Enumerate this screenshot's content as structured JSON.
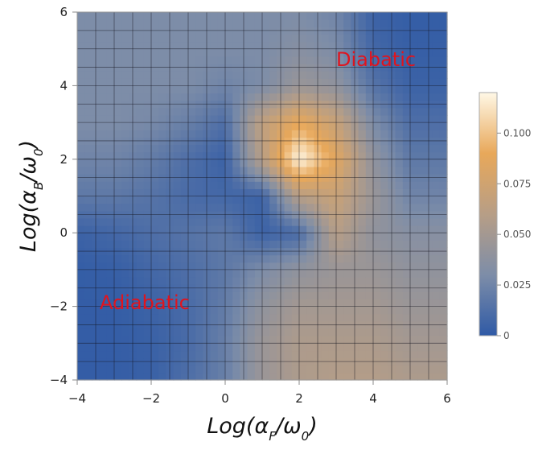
{
  "chart_data": {
    "type": "heatmap",
    "xlabel": "Log(αF/ω0)",
    "ylabel": "Log(αB/ω0)",
    "xlim": [
      -4,
      6
    ],
    "ylim": [
      -4,
      6
    ],
    "x_ticks": [
      "−4",
      "−2",
      "0",
      "2",
      "4",
      "6"
    ],
    "y_ticks": [
      "−4",
      "−2",
      "0",
      "2",
      "4",
      "6"
    ],
    "colorbar": {
      "range": [
        0,
        0.12
      ],
      "ticks": [
        "0",
        "0.025",
        "0.050",
        "0.075",
        "0.100"
      ],
      "colors": [
        "#2f5aa6",
        "#7d8da8",
        "#b79e86",
        "#e8a85a",
        "#fff8e6"
      ]
    },
    "grid": true,
    "annotations": [
      "Diabatic",
      "Adiabatic"
    ],
    "x": [
      -4,
      -3,
      -2,
      -1,
      0,
      1,
      2,
      3,
      4,
      5,
      6
    ],
    "y": [
      6,
      5,
      4,
      3,
      2,
      1,
      0,
      -1,
      -2,
      -3,
      -4
    ],
    "z": [
      [
        0.03,
        0.03,
        0.03,
        0.03,
        0.03,
        0.03,
        0.03,
        0.025,
        0.005,
        0.002,
        0.002
      ],
      [
        0.03,
        0.03,
        0.03,
        0.03,
        0.03,
        0.03,
        0.035,
        0.03,
        0.008,
        0.003,
        0.003
      ],
      [
        0.03,
        0.03,
        0.03,
        0.03,
        0.025,
        0.03,
        0.045,
        0.04,
        0.015,
        0.005,
        0.005
      ],
      [
        0.03,
        0.03,
        0.028,
        0.022,
        0.012,
        0.065,
        0.09,
        0.07,
        0.03,
        0.012,
        0.012
      ],
      [
        0.025,
        0.025,
        0.02,
        0.012,
        0.005,
        0.06,
        0.12,
        0.085,
        0.04,
        0.018,
        0.018
      ],
      [
        0.018,
        0.018,
        0.015,
        0.01,
        0.008,
        0.005,
        0.06,
        0.07,
        0.045,
        0.025,
        0.025
      ],
      [
        0.005,
        0.008,
        0.012,
        0.015,
        0.018,
        0.005,
        0.01,
        0.06,
        0.04,
        0.035,
        0.035
      ],
      [
        0.002,
        0.003,
        0.008,
        0.012,
        0.018,
        0.03,
        0.04,
        0.045,
        0.045,
        0.04,
        0.04
      ],
      [
        0.002,
        0.002,
        0.005,
        0.01,
        0.02,
        0.04,
        0.05,
        0.05,
        0.05,
        0.045,
        0.045
      ],
      [
        0.002,
        0.002,
        0.004,
        0.01,
        0.022,
        0.045,
        0.055,
        0.055,
        0.055,
        0.05,
        0.05
      ],
      [
        0.002,
        0.002,
        0.004,
        0.012,
        0.022,
        0.045,
        0.055,
        0.058,
        0.058,
        0.055,
        0.055
      ]
    ]
  }
}
